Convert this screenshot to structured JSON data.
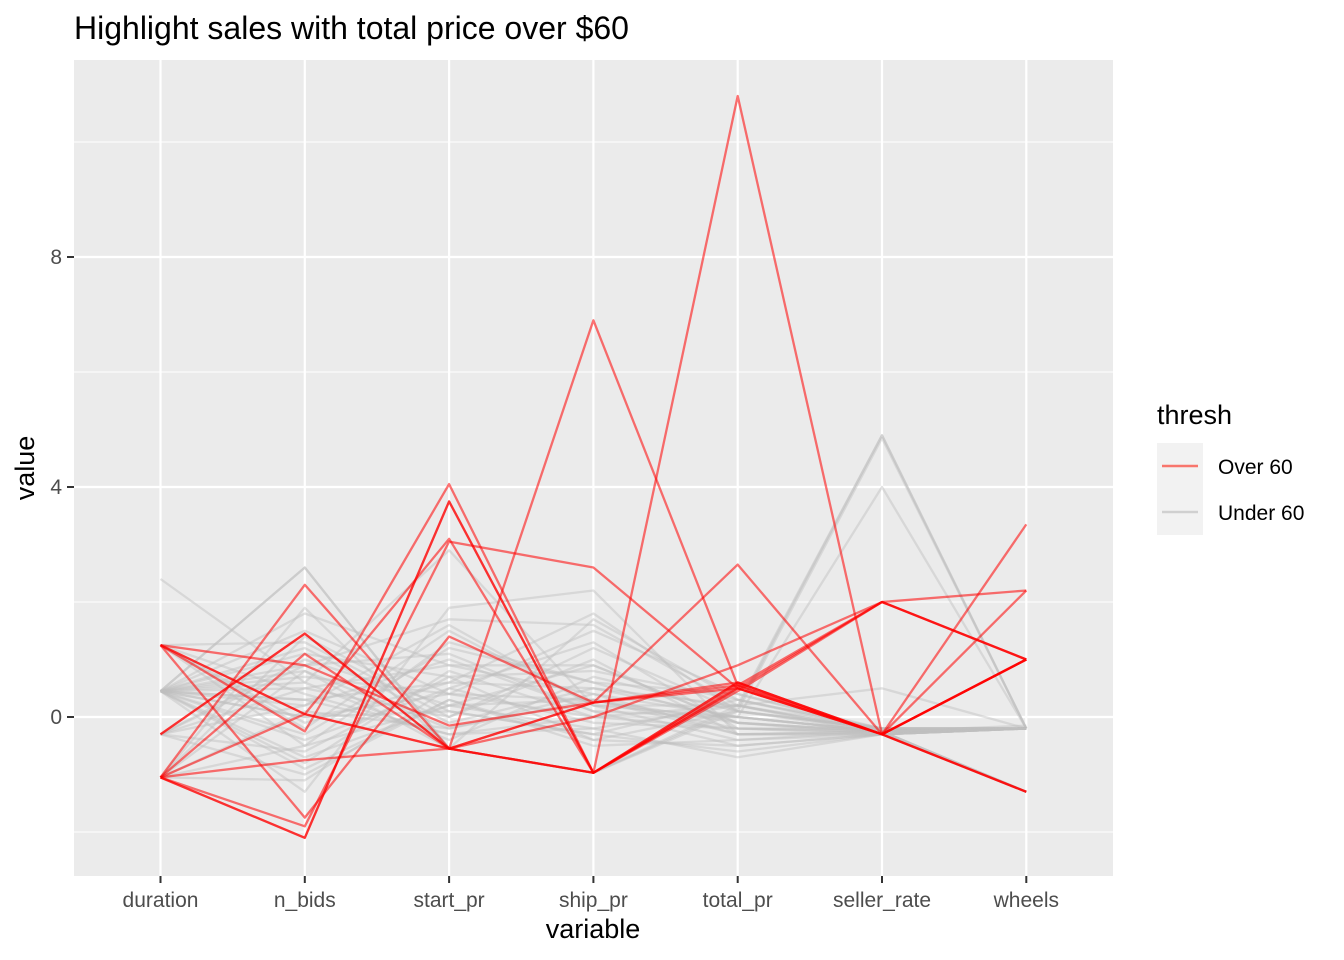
{
  "chart_data": {
    "type": "line",
    "chart_kind": "parallel-coordinates",
    "title": "Highlight sales with total price over $60",
    "xlabel": "variable",
    "ylabel": "value",
    "categories": [
      "duration",
      "n_bids",
      "start_pr",
      "ship_pr",
      "total_pr",
      "seller_rate",
      "wheels"
    ],
    "y_ticks": [
      0,
      4,
      8
    ],
    "ylim": [
      -2.7,
      11.4
    ],
    "grid": true,
    "legend": {
      "title": "thresh",
      "position": "right",
      "entries": [
        {
          "name": "Over 60",
          "color": "#f8766d"
        },
        {
          "name": "Under 60",
          "color": "#d0d0d0"
        }
      ]
    },
    "series": [
      {
        "name": "Over 60",
        "color": "#ff0000",
        "opacity": 0.55,
        "lines": [
          [
            -1.05,
            -2.1,
            3.75,
            -0.97,
            0.5,
            2.0,
            1.0
          ],
          [
            -1.05,
            -2.1,
            3.75,
            -0.97,
            0.55,
            2.0,
            1.0
          ],
          [
            1.25,
            0.05,
            -0.55,
            -0.97,
            0.6,
            -0.3,
            1.0
          ],
          [
            1.25,
            0.05,
            -0.55,
            -0.97,
            0.6,
            -0.3,
            1.0
          ],
          [
            1.25,
            -0.25,
            4.05,
            -0.97,
            10.8,
            -0.3,
            -1.3
          ],
          [
            -0.3,
            1.45,
            -0.55,
            -0.97,
            0.45,
            2.0,
            2.2
          ],
          [
            -1.05,
            2.3,
            -0.55,
            0.25,
            0.6,
            -0.3,
            3.35
          ],
          [
            -1.05,
            -1.9,
            3.05,
            2.6,
            0.5,
            -0.3,
            2.2
          ],
          [
            -1.05,
            1.1,
            -0.55,
            6.9,
            0.55,
            -0.3,
            1.0
          ],
          [
            1.25,
            -1.75,
            1.4,
            0.25,
            2.65,
            -0.3,
            -1.3
          ],
          [
            -0.3,
            1.45,
            -0.55,
            0.0,
            0.9,
            2.0,
            1.0
          ],
          [
            -1.05,
            0.05,
            3.1,
            -0.97,
            0.5,
            -0.3,
            1.0
          ],
          [
            1.25,
            0.9,
            -0.15,
            0.25,
            0.5,
            -0.3,
            -1.3
          ],
          [
            -1.05,
            -0.75,
            -0.55,
            0.25,
            0.55,
            -0.3,
            1.0
          ]
        ]
      },
      {
        "name": "Under 60",
        "color": "#bebebe",
        "opacity": 0.45,
        "lines": [
          [
            0.45,
            2.6,
            -0.55,
            -0.97,
            0.2,
            4.9,
            -0.2
          ],
          [
            0.45,
            2.6,
            -0.55,
            -0.97,
            0.15,
            4.9,
            -0.2
          ],
          [
            -1.05,
            1.9,
            -0.55,
            -0.97,
            0.1,
            4.85,
            -0.2
          ],
          [
            2.4,
            0.6,
            2.9,
            0.2,
            0.0,
            4.0,
            -0.2
          ],
          [
            0.45,
            -1.3,
            1.9,
            2.2,
            -0.3,
            -0.3,
            -1.3
          ],
          [
            0.45,
            0.3,
            0.6,
            1.8,
            0.1,
            -0.2,
            -0.2
          ],
          [
            -0.3,
            0.9,
            1.7,
            1.6,
            0.2,
            0.5,
            -0.2
          ],
          [
            1.25,
            -0.5,
            0.2,
            0.9,
            -0.1,
            -0.25,
            -0.15
          ],
          [
            0.45,
            1.5,
            0.4,
            0.3,
            -0.2,
            -0.25,
            -0.2
          ],
          [
            -1.05,
            0.8,
            -0.55,
            1.7,
            0.3,
            -0.2,
            -0.2
          ],
          [
            0.45,
            -0.9,
            0.3,
            -0.4,
            -0.5,
            -0.3,
            -0.2
          ],
          [
            -0.3,
            0.2,
            1.0,
            0.1,
            0.0,
            -0.25,
            -1.3
          ],
          [
            0.45,
            1.2,
            -0.1,
            0.5,
            0.2,
            -0.2,
            -0.2
          ],
          [
            1.25,
            -0.2,
            1.5,
            0.2,
            -0.4,
            -0.25,
            -0.2
          ],
          [
            0.45,
            0.0,
            0.1,
            -0.3,
            -0.6,
            -0.3,
            -0.2
          ],
          [
            -0.3,
            -0.6,
            0.7,
            0.8,
            0.3,
            -0.25,
            -1.3
          ],
          [
            0.45,
            0.5,
            0.0,
            1.2,
            0.1,
            -0.25,
            -0.2
          ],
          [
            -1.05,
            -1.1,
            0.5,
            -0.1,
            -0.2,
            -0.2,
            -0.2
          ],
          [
            0.45,
            1.8,
            0.9,
            0.4,
            -0.3,
            -0.25,
            -0.2
          ],
          [
            1.25,
            0.4,
            -0.3,
            0.0,
            0.2,
            -0.3,
            -0.2
          ],
          [
            0.45,
            -0.3,
            1.2,
            0.6,
            -0.1,
            -0.25,
            -1.3
          ],
          [
            -0.3,
            1.0,
            0.2,
            -0.2,
            -0.7,
            -0.3,
            -0.2
          ],
          [
            0.45,
            0.7,
            0.4,
            1.5,
            0.4,
            -0.2,
            -0.2
          ],
          [
            -1.05,
            0.1,
            -0.2,
            0.3,
            -0.1,
            -0.25,
            -0.2
          ],
          [
            0.45,
            -0.8,
            0.8,
            0.0,
            0.0,
            -0.25,
            -0.2
          ],
          [
            1.25,
            1.3,
            0.0,
            1.0,
            -0.3,
            -0.3,
            -1.3
          ],
          [
            0.45,
            0.2,
            1.6,
            0.2,
            0.2,
            -0.25,
            -0.2
          ],
          [
            -0.3,
            -1.0,
            0.3,
            -0.5,
            -0.4,
            -0.3,
            -0.2
          ],
          [
            0.45,
            0.6,
            -0.4,
            0.7,
            0.1,
            -0.2,
            -0.2
          ],
          [
            0.45,
            -0.4,
            0.5,
            1.3,
            -0.2,
            -0.25,
            -0.2
          ],
          [
            -1.05,
            1.4,
            0.1,
            -0.3,
            0.3,
            -0.2,
            -0.2
          ],
          [
            0.45,
            0.9,
            1.1,
            0.1,
            -0.5,
            -0.3,
            -0.2
          ],
          [
            1.25,
            -0.1,
            0.6,
            0.5,
            0.0,
            -0.25,
            -0.2
          ],
          [
            0.45,
            0.3,
            -0.3,
            -0.2,
            0.2,
            -0.25,
            -1.3
          ],
          [
            -0.3,
            0.5,
            0.9,
            0.9,
            -0.1,
            -0.3,
            -0.2
          ],
          [
            0.45,
            -0.7,
            0.2,
            0.3,
            -0.3,
            -0.25,
            -0.2
          ],
          [
            0.45,
            1.1,
            0.7,
            -0.4,
            0.1,
            -0.2,
            -0.2
          ],
          [
            -1.05,
            -0.5,
            1.3,
            0.6,
            0.4,
            -0.25,
            -0.2
          ],
          [
            0.45,
            0.0,
            0.4,
            0.0,
            -0.2,
            -0.3,
            -0.2
          ],
          [
            0.45,
            0.8,
            -0.2,
            0.4,
            0.0,
            -0.25,
            -0.2
          ]
        ]
      }
    ]
  }
}
